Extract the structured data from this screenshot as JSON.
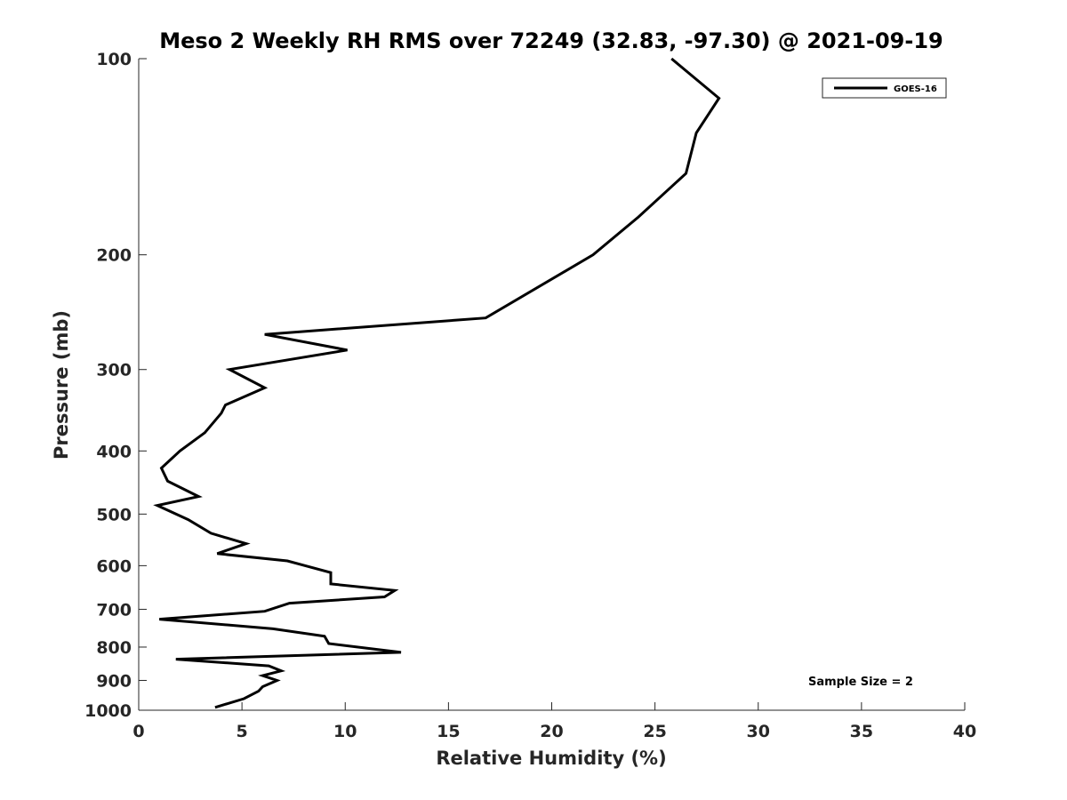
{
  "chart_data": {
    "type": "line",
    "title": "Meso 2 Weekly RH RMS over 72249 (32.83, -97.30) @ 2021-09-19",
    "xlabel": "Relative Humidity (%)",
    "ylabel": "Pressure (mb)",
    "xlim": [
      0,
      40
    ],
    "ylim": [
      1000,
      100
    ],
    "y_scale": "log",
    "y_reversed": true,
    "x_ticks": [
      0,
      5,
      10,
      15,
      20,
      25,
      30,
      35,
      40
    ],
    "y_ticks": [
      100,
      200,
      300,
      400,
      500,
      600,
      700,
      800,
      900,
      1000
    ],
    "grid": false,
    "legend_position": "top-right",
    "annotation": "Sample Size = 2",
    "series": [
      {
        "name": "GOES-16",
        "color": "#000000",
        "x": [
          25.8,
          28.1,
          27.0,
          26.5,
          24.2,
          22.0,
          16.8,
          6.1,
          10.1,
          4.4,
          6.1,
          4.2,
          4.0,
          3.2,
          2.0,
          1.1,
          1.4,
          2.9,
          0.9,
          2.4,
          3.5,
          5.2,
          3.8,
          7.2,
          9.3,
          9.3,
          12.4,
          11.9,
          7.3,
          6.1,
          1.0,
          6.5,
          9.0,
          9.2,
          12.7,
          1.8,
          6.3,
          6.9,
          6.0,
          6.7,
          6.0,
          5.8,
          5.1,
          3.7
        ],
        "y": [
          100,
          115,
          130,
          150,
          175,
          200,
          250,
          265,
          280,
          300,
          320,
          340,
          350,
          375,
          400,
          425,
          445,
          470,
          485,
          510,
          535,
          555,
          575,
          590,
          615,
          640,
          655,
          670,
          685,
          705,
          725,
          750,
          770,
          790,
          815,
          835,
          855,
          870,
          885,
          900,
          920,
          935,
          960,
          990
        ]
      }
    ]
  }
}
